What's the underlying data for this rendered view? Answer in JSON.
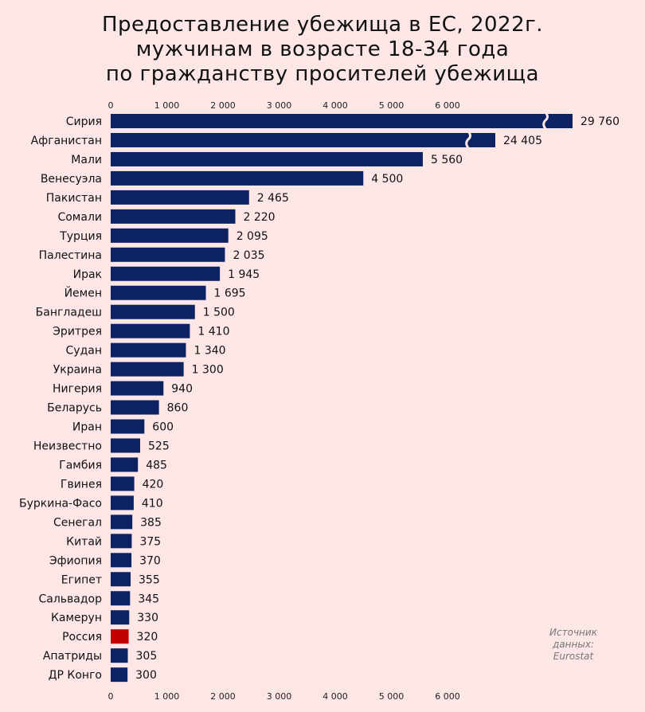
{
  "title_lines": [
    "Предоставление убежища в ЕС, 2022г.",
    "мужчинам в возрасте 18-34 года",
    "по гражданству просителей убежища"
  ],
  "source_lines": [
    "Источник",
    "данных:",
    "Eurostat"
  ],
  "colors": {
    "bar": "#0d2263",
    "highlight": "#c00000",
    "background": "#fde6e6",
    "text": "#111111"
  },
  "chart_data": {
    "type": "bar",
    "orientation": "horizontal",
    "title": "Предоставление убежища в ЕС, 2022г. мужчинам в возрасте 18-34 года по гражданству просителей убежища",
    "xlim": [
      0,
      7000
    ],
    "x_axis_break": true,
    "axis_ticks": [
      0,
      1000,
      2000,
      3000,
      4000,
      5000,
      6000
    ],
    "axis_tick_labels": [
      "0",
      "1 000",
      "2 000",
      "3 000",
      "4 000",
      "5 000",
      "6 000"
    ],
    "axis_position": "top-and-bottom",
    "highlighted_category": "Россия",
    "categories": [
      "Сирия",
      "Афганистан",
      "Мали",
      "Венесуэла",
      "Пакистан",
      "Сомали",
      "Турция",
      "Палестина",
      "Ирак",
      "Йемен",
      "Бангладеш",
      "Эритрея",
      "Судан",
      "Украина",
      "Нигерия",
      "Беларусь",
      "Иран",
      "Неизвестно",
      "Гамбия",
      "Гвинея",
      "Буркина-Фасо",
      "Сенегал",
      "Китай",
      "Эфиопия",
      "Египет",
      "Сальвадор",
      "Камерун",
      "Россия",
      "Апатриды",
      "ДР Конго"
    ],
    "values": [
      29760,
      24405,
      5560,
      4500,
      2465,
      2220,
      2095,
      2035,
      1945,
      1695,
      1500,
      1410,
      1340,
      1300,
      940,
      860,
      600,
      525,
      485,
      420,
      410,
      385,
      375,
      370,
      355,
      345,
      330,
      320,
      305,
      300
    ],
    "value_labels": [
      "29 760",
      "24 405",
      "5 560",
      "4 500",
      "2 465",
      "2 220",
      "2 095",
      "2 035",
      "1 945",
      "1 695",
      "1 500",
      "1 410",
      "1 340",
      "1 300",
      "940",
      "860",
      "600",
      "525",
      "485",
      "420",
      "410",
      "385",
      "375",
      "370",
      "355",
      "345",
      "330",
      "320",
      "305",
      "300"
    ]
  }
}
